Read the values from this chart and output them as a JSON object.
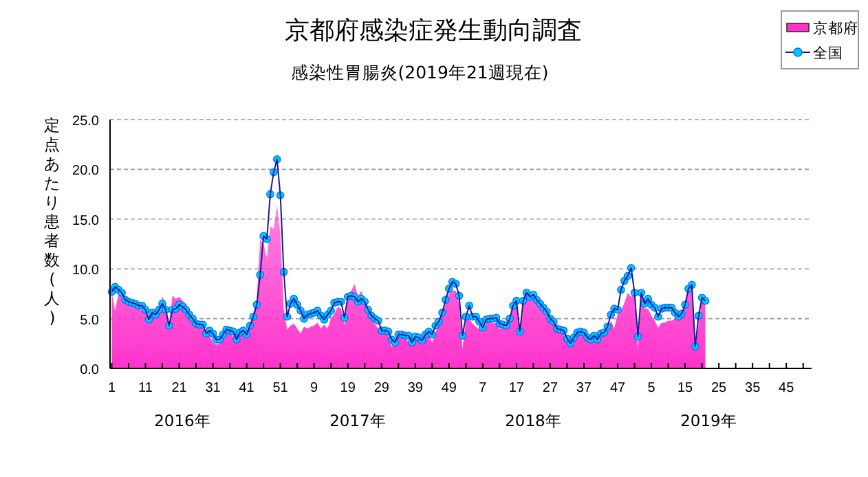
{
  "chart_data": {
    "type": "area",
    "title": "京都府感染症発生動向調査",
    "subtitle": "感染性胃腸炎(2019年21週現在)",
    "ylabel": "定点あたり患者数(人)",
    "categories": [
      "1",
      null,
      null,
      null,
      null,
      null,
      null,
      null,
      null,
      null,
      "11",
      null,
      null,
      null,
      null,
      null,
      null,
      null,
      null,
      null,
      "21",
      null,
      null,
      null,
      null,
      null,
      null,
      null,
      null,
      null,
      "31",
      null,
      null,
      null,
      null,
      null,
      null,
      null,
      null,
      null,
      "41",
      null,
      null,
      null,
      null,
      null,
      null,
      null,
      null,
      null,
      "51",
      null,
      null,
      null,
      null,
      null,
      null,
      null,
      null,
      null,
      "9",
      null,
      null,
      null,
      null,
      null,
      null,
      null,
      null,
      null,
      "19",
      null,
      null,
      null,
      null,
      null,
      null,
      null,
      null,
      null,
      "29",
      null,
      null,
      null,
      null,
      null,
      null,
      null,
      null,
      null,
      "39",
      null,
      null,
      null,
      null,
      null,
      null,
      null,
      null,
      null,
      "49",
      null,
      null,
      null,
      null,
      null,
      null,
      null,
      null,
      null,
      "7",
      null,
      null,
      null,
      null,
      null,
      null,
      null,
      null,
      null,
      "17",
      null,
      null,
      null,
      null,
      null,
      null,
      null,
      null,
      null,
      "27",
      null,
      null,
      null,
      null,
      null,
      null,
      null,
      null,
      null,
      "37",
      null,
      null,
      null,
      null,
      null,
      null,
      null,
      null,
      null,
      "47",
      null,
      null,
      null,
      null,
      null,
      null,
      null,
      null,
      null,
      "5",
      null,
      null,
      null,
      null,
      null,
      null,
      null,
      null,
      null,
      "15",
      null,
      null,
      null,
      null,
      null,
      null,
      null,
      null,
      null,
      "25",
      null,
      null,
      null,
      null,
      null,
      null,
      null,
      null,
      null,
      "35",
      null,
      null,
      null,
      null,
      null,
      null,
      null,
      null,
      null,
      "45",
      null,
      null,
      null,
      null,
      null,
      null,
      null
    ],
    "annotations": [
      "2016年",
      "2017年",
      "2018年",
      "2019年"
    ],
    "ylim": [
      0,
      25
    ],
    "yticks": [
      {
        "value": 0,
        "label": "0.0"
      },
      {
        "value": 5,
        "label": "5.0"
      },
      {
        "value": 10,
        "label": "10.0"
      },
      {
        "value": 15,
        "label": "15.0"
      },
      {
        "value": 20,
        "label": "20.0"
      },
      {
        "value": 25,
        "label": "25.0"
      }
    ],
    "grid": "y",
    "legend": "top right",
    "series": [
      {
        "name": "京都府",
        "color": "#ff33cc",
        "values": [
          7.7,
          5.8,
          7.5,
          7.2,
          6.8,
          6.5,
          6.4,
          6.2,
          6.0,
          5.8,
          5.7,
          5.2,
          5.4,
          5.6,
          6.2,
          7.2,
          6.5,
          4.3,
          7.3,
          7.0,
          7.2,
          6.8,
          6.5,
          6.0,
          5.4,
          4.9,
          4.5,
          4.0,
          3.6,
          3.3,
          2.6,
          2.4,
          2.5,
          3.2,
          3.6,
          3.5,
          3.2,
          3.6,
          3.4,
          3.5,
          3.8,
          4.3,
          5.6,
          7.0,
          13.0,
          12.5,
          11.1,
          14.3,
          14.0,
          16.4,
          13.5,
          6.0,
          3.9,
          4.3,
          4.5,
          4.0,
          3.5,
          4.2,
          4.0,
          4.2,
          4.3,
          4.6,
          4.0,
          4.4,
          4.0,
          5.0,
          5.5,
          6.2,
          6.0,
          4.3,
          7.0,
          7.8,
          8.5,
          7.2,
          7.8,
          6.6,
          5.8,
          5.0,
          4.5,
          4.0,
          3.6,
          3.5,
          3.3,
          2.2,
          2.5,
          3.2,
          3.3,
          3.1,
          2.6,
          3.4,
          3.0,
          3.2,
          3.3,
          3.5,
          3.4,
          2.6,
          3.6,
          4.5,
          5.5,
          6.5,
          7.5,
          7.8,
          7.8,
          6.5,
          2.0,
          4.8,
          5.0,
          4.5,
          4.2,
          3.9,
          3.8,
          4.4,
          4.9,
          4.5,
          4.6,
          4.0,
          4.0,
          4.3,
          4.8,
          6.0,
          6.3,
          3.2,
          6.5,
          7.5,
          7.4,
          7.7,
          6.8,
          6.3,
          5.8,
          5.3,
          4.9,
          4.4,
          3.8,
          3.6,
          3.5,
          2.6,
          2.4,
          3.2,
          3.4,
          3.6,
          3.2,
          2.8,
          2.8,
          3.0,
          2.6,
          3.2,
          3.3,
          3.6,
          4.8,
          4.0,
          5.5,
          5.8,
          6.6,
          7.6,
          7.2,
          7.4,
          1.8,
          7.5,
          6.0,
          6.0,
          5.3,
          4.8,
          4.1,
          4.6,
          4.6,
          4.8,
          4.8,
          5.0,
          5.3,
          5.6,
          6.8,
          8.0,
          8.8,
          2.0,
          4.5,
          7.0,
          6.8,
          null,
          null,
          null,
          null,
          null,
          null,
          null,
          null,
          null,
          null,
          null,
          null,
          null,
          null,
          null,
          null,
          null,
          null,
          null,
          null,
          null,
          null,
          null,
          null,
          null,
          null,
          null,
          null,
          null,
          null,
          null
        ]
      },
      {
        "name": "全国",
        "type": "line",
        "marker": "circle",
        "color": "#00c8ff",
        "values": [
          7.7,
          8.2,
          7.9,
          7.6,
          6.9,
          6.7,
          6.6,
          6.5,
          6.3,
          6.3,
          5.9,
          4.9,
          5.6,
          5.4,
          5.9,
          6.5,
          5.9,
          4.3,
          5.9,
          6.0,
          6.4,
          6.2,
          5.9,
          5.4,
          5.0,
          4.5,
          4.4,
          4.4,
          3.5,
          3.8,
          3.5,
          2.9,
          2.9,
          3.4,
          3.9,
          3.8,
          3.7,
          2.9,
          3.6,
          3.8,
          3.4,
          4.3,
          5.2,
          6.4,
          9.4,
          13.3,
          13.0,
          17.5,
          19.7,
          21.0,
          17.4,
          9.7,
          5.2,
          6.5,
          7.0,
          6.4,
          5.8,
          5.0,
          5.4,
          5.5,
          5.6,
          5.8,
          5.3,
          4.9,
          5.4,
          5.8,
          6.6,
          6.7,
          6.7,
          5.1,
          7.2,
          7.3,
          7.2,
          6.7,
          7.0,
          6.7,
          5.9,
          5.3,
          5.0,
          4.8,
          3.8,
          3.8,
          3.7,
          2.9,
          2.6,
          3.4,
          3.4,
          3.3,
          3.3,
          2.6,
          3.2,
          3.1,
          2.8,
          3.4,
          3.7,
          3.4,
          4.3,
          4.7,
          5.6,
          6.9,
          8.0,
          8.7,
          8.5,
          7.3,
          3.3,
          5.2,
          6.3,
          5.2,
          5.2,
          4.7,
          4.1,
          4.9,
          5.0,
          5.0,
          5.1,
          4.5,
          4.4,
          4.3,
          5.0,
          6.3,
          6.8,
          3.7,
          6.8,
          7.6,
          7.2,
          7.4,
          6.9,
          6.5,
          6.1,
          5.7,
          5.0,
          4.7,
          4.0,
          3.9,
          3.8,
          3.0,
          2.5,
          3.1,
          3.6,
          3.7,
          3.6,
          3.1,
          2.9,
          3.3,
          2.9,
          3.5,
          3.6,
          4.2,
          5.4,
          6.0,
          5.9,
          7.9,
          8.8,
          9.3,
          10.1,
          7.6,
          3.2,
          7.6,
          6.5,
          7.0,
          6.4,
          6.1,
          5.2,
          6.0,
          6.1,
          6.1,
          6.1,
          5.6,
          5.2,
          5.5,
          6.4,
          8.0,
          8.4,
          2.2,
          5.3,
          7.1,
          6.8,
          null,
          null,
          null,
          null,
          null,
          null,
          null,
          null,
          null,
          null,
          null,
          null,
          null,
          null,
          null,
          null,
          null,
          null,
          null,
          null,
          null,
          null,
          null,
          null,
          null,
          null,
          null,
          null,
          null,
          null,
          null
        ]
      }
    ]
  }
}
